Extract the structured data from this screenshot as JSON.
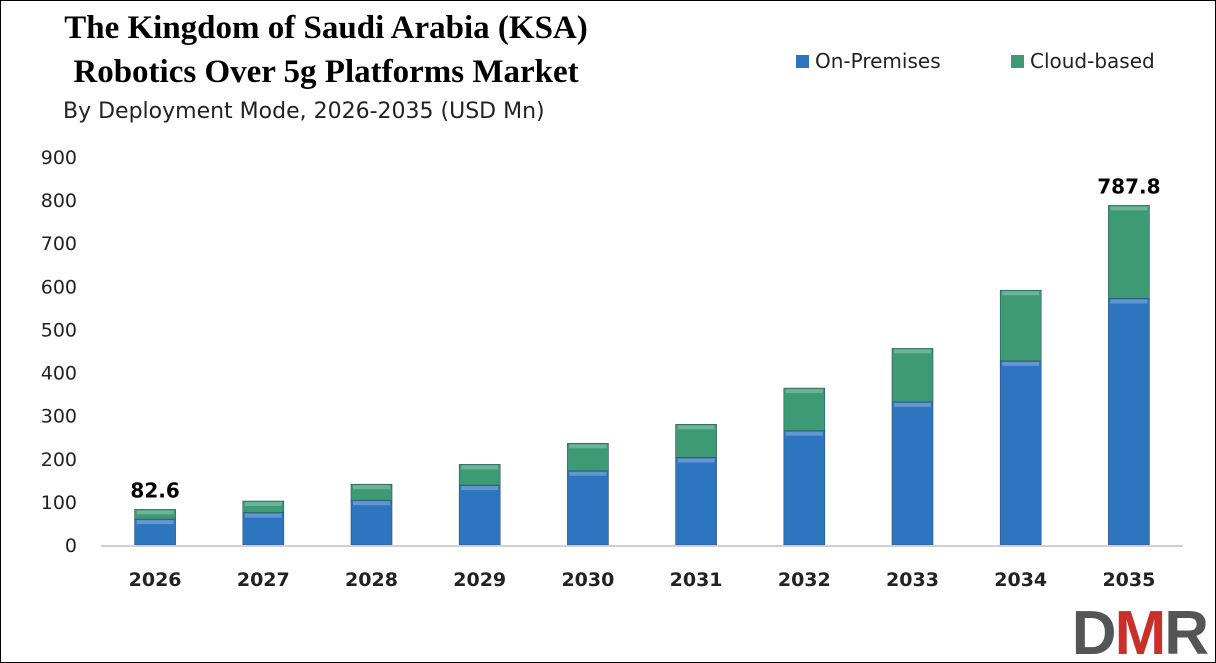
{
  "chart_data": {
    "type": "bar",
    "stacked": true,
    "title": "The Kingdom of Saudi Arabia (KSA) Robotics Over 5g Platforms Market",
    "title_line1": "The Kingdom of Saudi Arabia (KSA)",
    "title_line2": "Robotics Over 5g Platforms Market",
    "subtitle": "By Deployment Mode, 2026-2035 (USD Mn)",
    "categories": [
      "2026",
      "2027",
      "2028",
      "2029",
      "2030",
      "2031",
      "2032",
      "2033",
      "2034",
      "2035"
    ],
    "series": [
      {
        "name": "On-Premises",
        "color": "#2e75c0",
        "values": [
          60,
          75,
          104,
          139,
          172,
          203,
          265,
          332,
          427,
          572
        ]
      },
      {
        "name": "Cloud-based",
        "color": "#3d9a74",
        "values": [
          22.6,
          27,
          37,
          48,
          64,
          77,
          99,
          124,
          164,
          215.8
        ]
      }
    ],
    "data_labels": [
      {
        "category": "2026",
        "text": "82.6"
      },
      {
        "category": "2035",
        "text": "787.8"
      }
    ],
    "ylim": [
      0,
      900
    ],
    "yticks": [
      "0",
      "100",
      "200",
      "300",
      "400",
      "500",
      "600",
      "700",
      "800",
      "900"
    ],
    "legend": "top-right",
    "grid": false
  },
  "logo": "DMR"
}
